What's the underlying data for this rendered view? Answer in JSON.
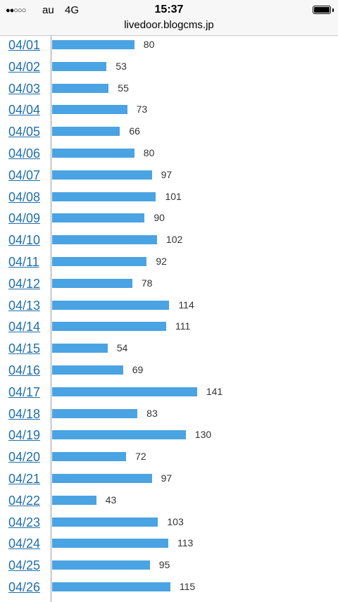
{
  "status_bar": {
    "signal": "●●○○○",
    "carrier": "au",
    "network": "4G",
    "time": "15:37"
  },
  "browser": {
    "url": "livedoor.blogcms.jp"
  },
  "chart_data": {
    "type": "bar",
    "orientation": "horizontal",
    "categories": [
      "04/01",
      "04/02",
      "04/03",
      "04/04",
      "04/05",
      "04/06",
      "04/07",
      "04/08",
      "04/09",
      "04/10",
      "04/11",
      "04/12",
      "04/13",
      "04/14",
      "04/15",
      "04/16",
      "04/17",
      "04/18",
      "04/19",
      "04/20",
      "04/21",
      "04/22",
      "04/23",
      "04/24",
      "04/25",
      "04/26"
    ],
    "values": [
      80,
      53,
      55,
      73,
      66,
      80,
      97,
      101,
      90,
      102,
      92,
      78,
      114,
      111,
      54,
      69,
      141,
      83,
      130,
      72,
      97,
      43,
      103,
      113,
      95,
      115
    ],
    "bar_color": "#4aa3e2",
    "link_color": "#1f6fa8"
  }
}
